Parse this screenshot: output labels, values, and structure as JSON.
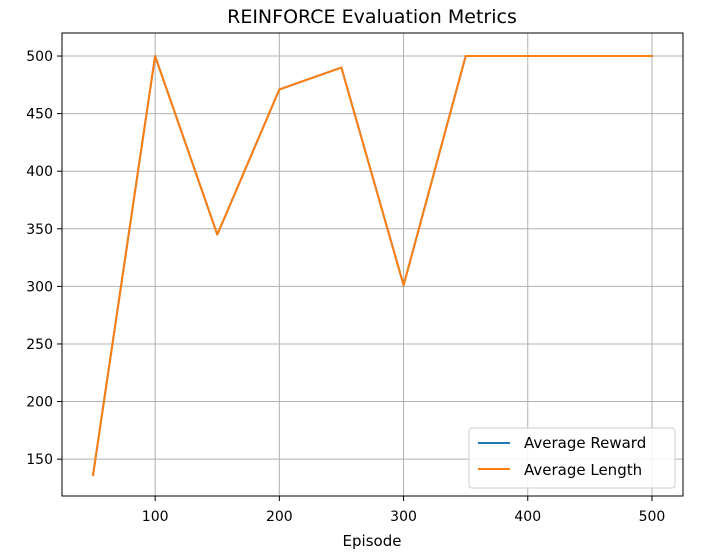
{
  "chart_data": {
    "type": "line",
    "title": "REINFORCE Evaluation Metrics",
    "xlabel": "Episode",
    "ylabel": "",
    "xlim": [
      25,
      525
    ],
    "ylim": [
      118,
      520
    ],
    "xticks": [
      100,
      200,
      300,
      400,
      500
    ],
    "yticks": [
      150,
      200,
      250,
      300,
      350,
      400,
      450,
      500
    ],
    "grid": true,
    "legend_position": "lower-right",
    "x": [
      50,
      100,
      150,
      200,
      250,
      300,
      350,
      400,
      450,
      500
    ],
    "series": [
      {
        "name": "Average Reward",
        "color": "#1f77b4",
        "values": [
          136,
          500,
          345,
          471,
          490,
          301,
          500,
          500,
          500,
          500
        ]
      },
      {
        "name": "Average Length",
        "color": "#ff7f0e",
        "values": [
          136,
          500,
          345,
          471,
          490,
          301,
          500,
          500,
          500,
          500
        ]
      }
    ]
  }
}
